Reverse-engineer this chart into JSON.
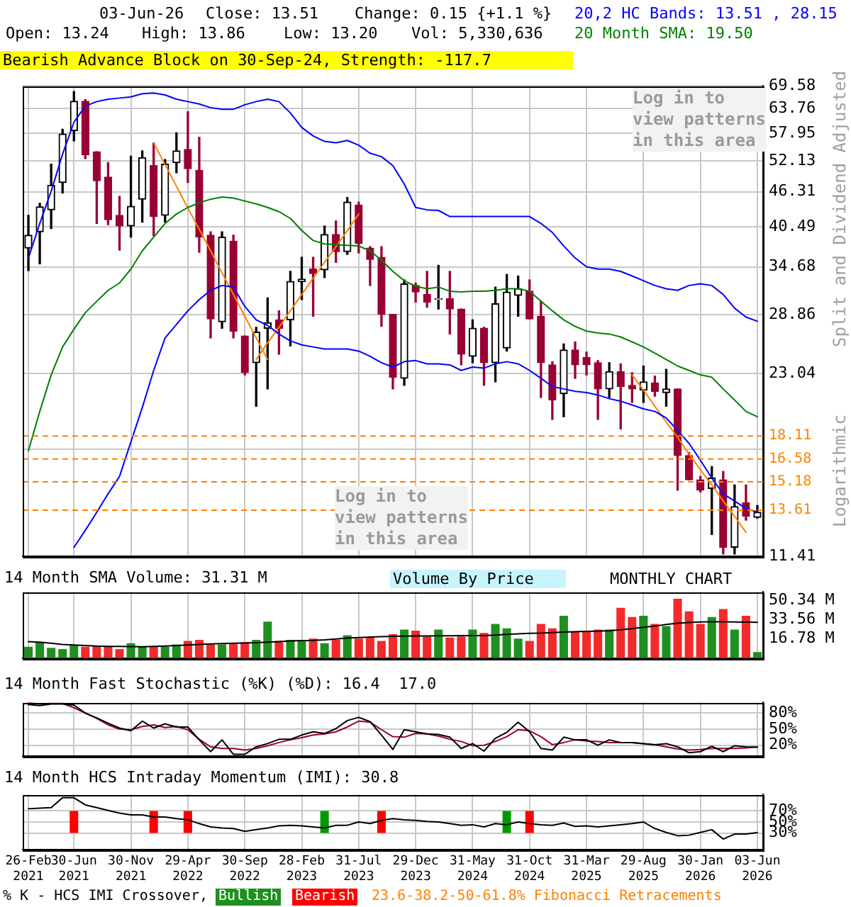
{
  "chart_data": [
    {
      "type": "candlestick",
      "title": "Bearish Advance Block on 30-Sep-24, Strength: -117.7",
      "ylabel": "Split and Dividend Adjusted",
      "annotations": [
        "03-Jun-26",
        "Close: 13.51",
        "Change: 0.15 {+1.1 %}",
        "Open: 13.24",
        "High: 13.86",
        "Low: 13.20",
        "Vol: 5,330,636",
        "Log in to view patterns in this area",
        "Log in to view patterns in this area",
        "Volume By Price",
        "MONTHLY CHART",
        "Logarithmic"
      ],
      "ohlc": [
        [
          37.3,
          42.3,
          34.2,
          39.2
        ],
        [
          39.7,
          44.3,
          35.1,
          43.7
        ],
        [
          43.2,
          51.5,
          40.2,
          47.5
        ],
        [
          48.0,
          58.9,
          46.1,
          57.8
        ],
        [
          58.6,
          68.1,
          56.3,
          65.6
        ],
        [
          65.6,
          66.0,
          52.6,
          53.4
        ],
        [
          54.0,
          54.0,
          41.0,
          48.3
        ],
        [
          49.0,
          51.8,
          40.8,
          41.6
        ],
        [
          42.3,
          45.5,
          37.0,
          40.6
        ],
        [
          40.6,
          53.1,
          38.9,
          43.8
        ],
        [
          45.0,
          54.2,
          41.2,
          52.8
        ],
        [
          51.2,
          55.9,
          39.1,
          42.1
        ],
        [
          42.3,
          52.4,
          41.2,
          51.5
        ],
        [
          51.8,
          58.1,
          49.8,
          54.2
        ],
        [
          54.5,
          63.0,
          48.0,
          50.6
        ],
        [
          50.3,
          57.1,
          36.7,
          38.9
        ],
        [
          39.2,
          39.7,
          26.4,
          28.4
        ],
        [
          28.1,
          39.7,
          27.4,
          38.9
        ],
        [
          38.3,
          39.2,
          26.4,
          27.1
        ],
        [
          26.6,
          26.6,
          22.9,
          23.1
        ],
        [
          24.0,
          27.5,
          20.3,
          27.0
        ],
        [
          27.4,
          30.8,
          21.7,
          28.0
        ],
        [
          28.3,
          29.3,
          24.8,
          27.4
        ],
        [
          28.3,
          34.1,
          25.6,
          32.8
        ],
        [
          32.8,
          36.0,
          30.6,
          33.1
        ],
        [
          34.4,
          36.0,
          28.7,
          33.8
        ],
        [
          34.3,
          40.6,
          33.3,
          39.3
        ],
        [
          39.3,
          41.4,
          35.3,
          36.8
        ],
        [
          36.8,
          45.3,
          36.4,
          44.5
        ],
        [
          44.0,
          44.5,
          36.6,
          38.0
        ],
        [
          37.3,
          37.5,
          32.3,
          35.7
        ],
        [
          36.0,
          37.5,
          27.6,
          28.9
        ],
        [
          28.9,
          28.9,
          21.7,
          22.7
        ],
        [
          22.6,
          33.0,
          22.0,
          32.5
        ],
        [
          32.3,
          32.6,
          30.3,
          31.5
        ],
        [
          31.2,
          34.1,
          29.7,
          30.3
        ],
        [
          30.6,
          34.9,
          29.5,
          30.7
        ],
        [
          30.7,
          34.1,
          26.8,
          29.5
        ],
        [
          29.5,
          29.5,
          23.8,
          24.8
        ],
        [
          24.6,
          28.3,
          24.0,
          27.4
        ],
        [
          27.4,
          27.5,
          22.0,
          24.0
        ],
        [
          24.0,
          32.1,
          22.3,
          30.1
        ],
        [
          25.4,
          33.7,
          25.1,
          31.5
        ],
        [
          31.1,
          33.5,
          28.7,
          31.9
        ],
        [
          31.6,
          33.0,
          28.4,
          28.4
        ],
        [
          28.7,
          30.4,
          21.0,
          24.0
        ],
        [
          23.8,
          24.1,
          19.3,
          20.8
        ],
        [
          21.3,
          25.8,
          19.5,
          25.2
        ],
        [
          25.2,
          26.0,
          22.6,
          23.8
        ],
        [
          24.5,
          25.0,
          22.9,
          23.8
        ],
        [
          24.0,
          24.2,
          19.3,
          21.7
        ],
        [
          21.7,
          24.0,
          21.0,
          23.2
        ],
        [
          23.2,
          23.9,
          18.6,
          21.9
        ],
        [
          22.0,
          23.1,
          20.6,
          21.7
        ],
        [
          21.6,
          23.7,
          20.6,
          22.3
        ],
        [
          22.2,
          22.8,
          21.1,
          21.5
        ],
        [
          21.4,
          23.4,
          20.3,
          21.7
        ],
        [
          21.7,
          21.7,
          14.7,
          16.8
        ],
        [
          16.8,
          17.0,
          15.3,
          15.3
        ],
        [
          15.3,
          15.5,
          14.6,
          14.7
        ],
        [
          14.8,
          16.1,
          12.4,
          15.4
        ],
        [
          15.3,
          15.8,
          11.5,
          11.8
        ],
        [
          11.8,
          15.0,
          11.5,
          13.8
        ],
        [
          14.0,
          15.0,
          13.1,
          13.3
        ],
        [
          13.24,
          13.86,
          13.2,
          13.51
        ]
      ],
      "series": [
        {
          "type": "line",
          "name": "20,2 HC Bands: 13.51 , 28.15",
          "color": "#0000ff",
          "values": [
            35.9,
            41.0,
            46.4,
            53.5,
            60.5,
            64.4,
            65.5,
            66.1,
            66.4,
            66.7,
            67.5,
            67.7,
            67.2,
            66.1,
            65.5,
            64.9,
            64.0,
            63.6,
            63.6,
            64.7,
            65.5,
            66.1,
            65.5,
            62.7,
            59.3,
            57.4,
            56.2,
            55.9,
            56.4,
            55.4,
            53.7,
            53.0,
            51.2,
            47.7,
            43.6,
            43.2,
            43.1,
            42.1,
            42.1,
            42.1,
            42.1,
            42.1,
            42.1,
            42.1,
            42.1,
            41.0,
            39.6,
            37.6,
            35.9,
            34.7,
            34.4,
            34.4,
            34.1,
            33.5,
            32.9,
            32.3,
            31.9,
            31.7,
            32.3,
            32.5,
            32.3,
            31.2,
            29.6,
            28.6,
            28.15
          ]
        },
        {
          "type": "line",
          "color": "#0000ff",
          "values": [
            null,
            null,
            null,
            null,
            11.8,
            12.6,
            13.5,
            14.5,
            15.5,
            17.7,
            20.2,
            23.3,
            26.4,
            27.8,
            29.3,
            30.6,
            31.7,
            32.3,
            32.1,
            29.8,
            28.3,
            27.7,
            26.8,
            26.1,
            25.7,
            25.5,
            25.3,
            25.3,
            25.3,
            25.1,
            24.6,
            24.0,
            23.6,
            24.1,
            24.2,
            23.9,
            23.9,
            23.8,
            23.3,
            23.6,
            23.5,
            23.9,
            24.1,
            23.9,
            23.3,
            22.6,
            21.9,
            21.7,
            21.5,
            21.4,
            21.2,
            20.9,
            20.7,
            20.4,
            20.1,
            19.9,
            19.4,
            18.5,
            17.6,
            16.5,
            15.4,
            14.5,
            14.1,
            13.7,
            13.51
          ]
        },
        {
          "type": "line",
          "name": "20 Month SMA: 19.50",
          "color": "#008000",
          "values": [
            17.1,
            19.9,
            22.9,
            25.5,
            27.3,
            29.1,
            30.4,
            31.7,
            32.6,
            34.4,
            36.9,
            38.9,
            41.0,
            42.5,
            43.6,
            44.4,
            45.0,
            45.4,
            45.2,
            44.7,
            44.2,
            43.6,
            42.9,
            41.8,
            39.9,
            38.4,
            37.9,
            37.8,
            37.7,
            37.6,
            36.9,
            35.6,
            34.1,
            32.9,
            32.2,
            31.9,
            32.1,
            31.6,
            31.5,
            31.6,
            31.6,
            31.7,
            31.9,
            31.9,
            31.6,
            30.4,
            29.3,
            28.3,
            27.6,
            27.1,
            26.9,
            26.8,
            26.5,
            26.0,
            25.5,
            24.9,
            24.3,
            23.7,
            23.3,
            22.9,
            22.7,
            21.7,
            20.8,
            19.9,
            19.5
          ]
        },
        {
          "type": "line",
          "color": "#ff8000",
          "values": [
            null,
            null,
            null,
            null,
            null,
            null,
            null,
            null,
            null,
            null,
            null,
            55.9,
            51.4,
            47.3,
            43.5,
            40.1,
            36.9,
            33.9,
            31.2,
            28.7,
            26.4,
            24.3,
            null,
            null,
            null,
            null,
            null,
            null,
            null,
            null,
            null,
            null,
            null,
            null,
            null,
            null,
            null,
            null,
            null,
            null,
            null,
            null,
            null,
            null,
            null,
            null,
            null,
            null,
            null,
            null,
            null,
            null,
            null,
            null,
            null,
            null,
            null,
            null,
            null,
            null,
            null,
            null,
            null,
            null,
            null
          ]
        },
        {
          "type": "line",
          "color": "#ff8000",
          "values": [
            null,
            null,
            null,
            null,
            null,
            null,
            null,
            null,
            null,
            null,
            null,
            null,
            null,
            null,
            null,
            null,
            null,
            null,
            null,
            null,
            24.3,
            25.9,
            27.5,
            29.3,
            31.2,
            33.2,
            35.3,
            37.5,
            39.9,
            42.5,
            null,
            null,
            null,
            null,
            null,
            null,
            null,
            null,
            null,
            null,
            null,
            null,
            null,
            null,
            null,
            null,
            null,
            null,
            null,
            null,
            null,
            null,
            null,
            null,
            null,
            null,
            null,
            null,
            null,
            null,
            null,
            null,
            null,
            null,
            null
          ]
        },
        {
          "type": "line",
          "color": "#ff8000",
          "values": [
            null,
            null,
            null,
            null,
            null,
            null,
            null,
            null,
            null,
            null,
            null,
            null,
            null,
            null,
            null,
            null,
            null,
            null,
            null,
            null,
            null,
            null,
            null,
            null,
            null,
            null,
            null,
            null,
            null,
            null,
            null,
            null,
            null,
            null,
            null,
            null,
            null,
            null,
            null,
            null,
            null,
            null,
            null,
            null,
            null,
            null,
            null,
            null,
            null,
            null,
            null,
            null,
            null,
            22.9,
            21.6,
            20.3,
            19.1,
            18.0,
            16.9,
            15.9,
            15.0,
            14.1,
            13.3,
            12.5,
            null
          ]
        }
      ],
      "ref_lines": [
        {
          "axis": "y",
          "value": 18.11,
          "label": "18.11",
          "color": "#ff8000",
          "line_style": "dashed"
        },
        {
          "axis": "y",
          "value": 16.58,
          "label": "16.58",
          "color": "#ff8000",
          "line_style": "dashed"
        },
        {
          "axis": "y",
          "value": 15.18,
          "label": "15.18",
          "color": "#ff8000",
          "line_style": "dashed"
        },
        {
          "axis": "y",
          "value": 13.61,
          "label": "13.61",
          "color": "#ff8000",
          "line_style": "dashed"
        }
      ],
      "log": true,
      "ylim": [
        11.41,
        69.58
      ],
      "yticks": [
        69.58,
        63.76,
        57.95,
        52.13,
        46.31,
        40.49,
        34.68,
        28.86,
        23.04,
        {
          "value": 17.22,
          "label": null
        },
        11.41
      ],
      "grid": true,
      "tick_labels": "y"
    },
    {
      "type": "bar",
      "title": "14 Month SMA Volume: 31.31 M",
      "series": [
        {
          "type": "bar",
          "values": [
            10,
            14,
            9,
            8,
            11,
            10,
            11,
            10,
            8,
            13,
            10,
            10,
            10,
            12,
            15,
            16,
            12,
            12,
            13,
            14,
            16,
            32,
            15,
            16,
            15,
            17,
            13,
            16,
            20,
            17,
            18,
            15,
            21,
            25,
            24,
            19,
            25,
            18,
            19,
            25,
            22,
            30,
            26,
            17,
            15,
            30,
            26,
            37,
            23,
            23,
            25,
            25,
            44,
            36,
            37,
            30,
            28,
            52,
            41,
            30,
            36,
            43,
            25,
            37,
            5.3
          ],
          "colors": [
            "#1f8f1f",
            "#1f8f1f",
            "#1f8f1f",
            "#1f8f1f",
            "#1f8f1f",
            "#f32a2a",
            "#f32a2a",
            "#f32a2a",
            "#f32a2a",
            "#1f8f1f",
            "#1f8f1f",
            "#f32a2a",
            "#1f8f1f",
            "#1f8f1f",
            "#f32a2a",
            "#f32a2a",
            "#f32a2a",
            "#1f8f1f",
            "#f32a2a",
            "#f32a2a",
            "#1f8f1f",
            "#1f8f1f",
            "#f32a2a",
            "#1f8f1f",
            "#1f8f1f",
            "#f32a2a",
            "#1f8f1f",
            "#f32a2a",
            "#1f8f1f",
            "#f32a2a",
            "#f32a2a",
            "#f32a2a",
            "#f32a2a",
            "#1f8f1f",
            "#f32a2a",
            "#f32a2a",
            "#1f8f1f",
            "#f32a2a",
            "#f32a2a",
            "#1f8f1f",
            "#f32a2a",
            "#1f8f1f",
            "#1f8f1f",
            "#1f8f1f",
            "#f32a2a",
            "#f32a2a",
            "#f32a2a",
            "#1f8f1f",
            "#f32a2a",
            "#f32a2a",
            "#f32a2a",
            "#1f8f1f",
            "#f32a2a",
            "#f32a2a",
            "#1f8f1f",
            "#f32a2a",
            "#1f8f1f",
            "#f32a2a",
            "#f32a2a",
            "#f32a2a",
            "#1f8f1f",
            "#f32a2a",
            "#1f8f1f",
            "#f32a2a",
            "#1f8f1f"
          ]
        },
        {
          "type": "line",
          "color": "#000000",
          "values": [
            14.5,
            14,
            13,
            12,
            11.5,
            11,
            10.5,
            10.3,
            10.2,
            10.1,
            10,
            10.2,
            10.5,
            11,
            11.5,
            12,
            12.4,
            12.7,
            13,
            13.2,
            13.5,
            14,
            14.5,
            15,
            15.3,
            15.5,
            16,
            16.8,
            17.5,
            18,
            18.4,
            18.8,
            19.1,
            19.3,
            19.4,
            19.4,
            19.5,
            19.6,
            19.7,
            19.7,
            19.7,
            20.2,
            20.8,
            21.3,
            21.7,
            21.9,
            22.3,
            22.8,
            23.1,
            23.4,
            23.6,
            24,
            24.8,
            25.8,
            27,
            28,
            29.5,
            30.5,
            31.2,
            31.6,
            31.8,
            31.8,
            31.7,
            31.5,
            31.31
          ]
        }
      ],
      "ylim": [
        0,
        58
      ],
      "yticks": [
        {
          "value": 16.78,
          "label": "16.78 M"
        },
        {
          "value": 33.56,
          "label": "33.56 M"
        },
        {
          "value": 50.34,
          "label": "50.34 M"
        }
      ],
      "grid": "x",
      "tick_labels": "y"
    },
    {
      "type": "line",
      "title": "14 Month Fast Stochastic (%K) (%D): 16.4  17.0",
      "series": [
        {
          "color": "#000000",
          "values": [
            96,
            94,
            97,
            97,
            95,
            80,
            71,
            61,
            52,
            47,
            65,
            52,
            60,
            54,
            54,
            30,
            8,
            30,
            3,
            3,
            17,
            23,
            31,
            31,
            39,
            45,
            42,
            51,
            66,
            72,
            64,
            39,
            12,
            49,
            45,
            41,
            40,
            35,
            14,
            23,
            9,
            33,
            44,
            63,
            45,
            14,
            11,
            35,
            30,
            30,
            20,
            30,
            25,
            25,
            23,
            21,
            23,
            17,
            6,
            8,
            18,
            8,
            19,
            17,
            16.4
          ]
        },
        {
          "color": "#990033",
          "values": [
            99,
            97,
            98,
            98,
            90,
            80,
            70,
            58,
            50,
            49,
            55,
            58,
            53,
            55,
            49,
            31,
            17,
            14,
            14,
            11,
            14,
            19,
            25,
            30,
            34,
            39,
            41,
            45,
            54,
            65,
            63,
            49,
            36,
            35,
            42,
            41,
            37,
            31,
            27,
            19,
            20,
            27,
            36,
            49,
            47,
            36,
            21,
            25,
            30,
            28,
            27,
            25,
            25,
            25,
            23,
            21,
            17,
            13,
            11,
            12,
            14,
            14,
            14,
            15,
            17.0
          ]
        }
      ],
      "ylim": [
        0,
        100
      ],
      "yticks": [
        {
          "value": 20,
          "label": "20%"
        },
        {
          "value": 50,
          "label": "50%"
        },
        {
          "value": 80,
          "label": "80%"
        }
      ],
      "grid": true,
      "tick_labels": "y"
    },
    {
      "type": "line",
      "title": "14 Month HCS Intraday Momentum (IMI): 30.8",
      "categories": [
        "26-Feb\n2021",
        null,
        null,
        null,
        "30-Jun\n2021",
        null,
        null,
        null,
        null,
        "30-Nov\n2021",
        null,
        null,
        null,
        null,
        "29-Apr\n2022",
        null,
        null,
        null,
        null,
        "30-Sep\n2022",
        null,
        null,
        null,
        null,
        "28-Feb\n2023",
        null,
        null,
        null,
        null,
        "31-Jul\n2023",
        null,
        null,
        null,
        null,
        "29-Dec\n2023",
        null,
        null,
        null,
        null,
        "31-May\n2024",
        null,
        null,
        null,
        null,
        "31-Oct\n2024",
        null,
        null,
        null,
        null,
        "31-Mar\n2025",
        null,
        null,
        null,
        null,
        "29-Aug\n2025",
        null,
        null,
        null,
        null,
        "30-Jan\n2026",
        null,
        null,
        null,
        null,
        "03-Jun\n2026"
      ],
      "series": [
        {
          "color": "#000000",
          "values": [
            74,
            75,
            76,
            94,
            94,
            81,
            76,
            71,
            66,
            63,
            63,
            59,
            59,
            56,
            54,
            47,
            41,
            39,
            38,
            33,
            36,
            39,
            43,
            44,
            43,
            41,
            39,
            44,
            44,
            50,
            47,
            53,
            56,
            54,
            53,
            51,
            50,
            47,
            44,
            45,
            41,
            47,
            45,
            50,
            47,
            45,
            44,
            48,
            42,
            43,
            41,
            43,
            45,
            47,
            50,
            38,
            31,
            25,
            26,
            31,
            36,
            19,
            28,
            28,
            30.8
          ]
        },
        {
          "type": "bar",
          "values": [
            null,
            null,
            null,
            null,
            40,
            null,
            null,
            null,
            null,
            null,
            null,
            40,
            null,
            null,
            40,
            null,
            null,
            null,
            null,
            null,
            null,
            null,
            null,
            null,
            null,
            null,
            40,
            null,
            null,
            null,
            null,
            40,
            null,
            null,
            null,
            null,
            null,
            null,
            null,
            null,
            null,
            null,
            40,
            null,
            40,
            null,
            null,
            null,
            null,
            null,
            null,
            null,
            null,
            null,
            null,
            null,
            null,
            null,
            null,
            null,
            null,
            null,
            null,
            null,
            null
          ],
          "base": [
            null,
            null,
            null,
            null,
            30,
            null,
            null,
            null,
            null,
            null,
            null,
            30,
            null,
            null,
            30,
            null,
            null,
            null,
            null,
            null,
            null,
            null,
            null,
            null,
            null,
            null,
            30,
            null,
            null,
            null,
            null,
            30,
            null,
            null,
            null,
            null,
            null,
            null,
            null,
            null,
            null,
            null,
            30,
            null,
            30,
            null,
            null,
            null,
            null,
            null,
            null,
            null,
            null,
            null,
            null,
            null,
            null,
            null,
            null,
            null,
            null,
            null,
            null,
            null,
            null
          ],
          "colors": [
            null,
            null,
            null,
            null,
            "#ff0000",
            null,
            null,
            null,
            null,
            null,
            null,
            "#ff0000",
            null,
            null,
            "#ff0000",
            null,
            null,
            null,
            null,
            null,
            null,
            null,
            null,
            null,
            null,
            null,
            "#009900",
            null,
            null,
            null,
            null,
            "#ff0000",
            null,
            null,
            null,
            null,
            null,
            null,
            null,
            null,
            null,
            null,
            "#009900",
            null,
            "#ff0000",
            null,
            null,
            null,
            null,
            null,
            null,
            null,
            null,
            null,
            null,
            null,
            null,
            null,
            null,
            null,
            null,
            null,
            null,
            null,
            null
          ]
        }
      ],
      "annotations": [
        "% K - HCS IMI Crossover,",
        "Bullish",
        "Bearish",
        "23.6-38.2-50-61.8% Fibonacci Retracements"
      ],
      "ylim": [
        0,
        100
      ],
      "yticks": [
        {
          "value": 30,
          "label": "30%"
        },
        {
          "value": 50,
          "label": "50%"
        },
        {
          "value": 70,
          "label": "70%"
        }
      ],
      "grid": true
    }
  ]
}
